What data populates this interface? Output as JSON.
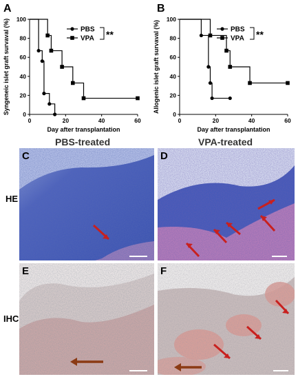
{
  "panels": {
    "a": "A",
    "b": "B",
    "c": "C",
    "d": "D",
    "e": "E",
    "f": "F"
  },
  "histology": {
    "col_left": "PBS-treated",
    "col_right": "VPA-treated",
    "row_top": "HE",
    "row_bottom": "IHC"
  },
  "colors": {
    "he_bg": "#5a6fc4",
    "he_dense": "#2f4aa8",
    "he_pink": "#c07fb5",
    "ihc_bg": "#d9c6c6",
    "ihc_red": "#d48a86",
    "arrow_red": "#c8201e",
    "arrow_brown": "#8b3a14"
  },
  "chart_data": [
    {
      "type": "line",
      "title": "",
      "xlabel": "Day after transplantation",
      "ylabel": "Syngeneic islet graft survaval (%)",
      "xlim": [
        0,
        60
      ],
      "ylim": [
        0,
        100
      ],
      "xticks": [
        "0",
        "20",
        "40",
        "60"
      ],
      "yticks": [
        "0",
        "20",
        "40",
        "60",
        "80",
        "100"
      ],
      "legend_position": "top-right",
      "significance": "**",
      "series": [
        {
          "name": "PBS",
          "marker": "circle",
          "x": [
            0,
            5,
            5,
            7,
            7,
            8,
            8,
            11,
            11,
            14,
            14
          ],
          "y": [
            100,
            100,
            67,
            67,
            56,
            56,
            22,
            22,
            11,
            11,
            0
          ]
        },
        {
          "name": "VPA",
          "marker": "square",
          "x": [
            0,
            10,
            10,
            12,
            12,
            18,
            18,
            24,
            24,
            30,
            30,
            60
          ],
          "y": [
            100,
            100,
            83,
            83,
            67,
            67,
            50,
            50,
            33,
            33,
            17,
            17
          ]
        }
      ]
    },
    {
      "type": "line",
      "title": "",
      "xlabel": "Day after transplantation",
      "ylabel": "Allogenic islet graft survaval (%)",
      "xlim": [
        0,
        60
      ],
      "ylim": [
        0,
        100
      ],
      "xticks": [
        "0",
        "20",
        "40",
        "60"
      ],
      "yticks": [
        "0",
        "20",
        "40",
        "60",
        "80",
        "100"
      ],
      "legend_position": "top-right",
      "significance": "**",
      "series": [
        {
          "name": "PBS",
          "marker": "circle",
          "x": [
            0,
            12,
            12,
            16,
            16,
            17,
            17,
            18,
            18,
            28
          ],
          "y": [
            100,
            100,
            83,
            83,
            50,
            50,
            33,
            33,
            17,
            17
          ]
        },
        {
          "name": "VPA",
          "marker": "square",
          "x": [
            0,
            17,
            17,
            26,
            26,
            28,
            28,
            39,
            39,
            60
          ],
          "y": [
            100,
            100,
            83,
            83,
            67,
            67,
            50,
            50,
            33,
            33
          ]
        }
      ]
    }
  ]
}
